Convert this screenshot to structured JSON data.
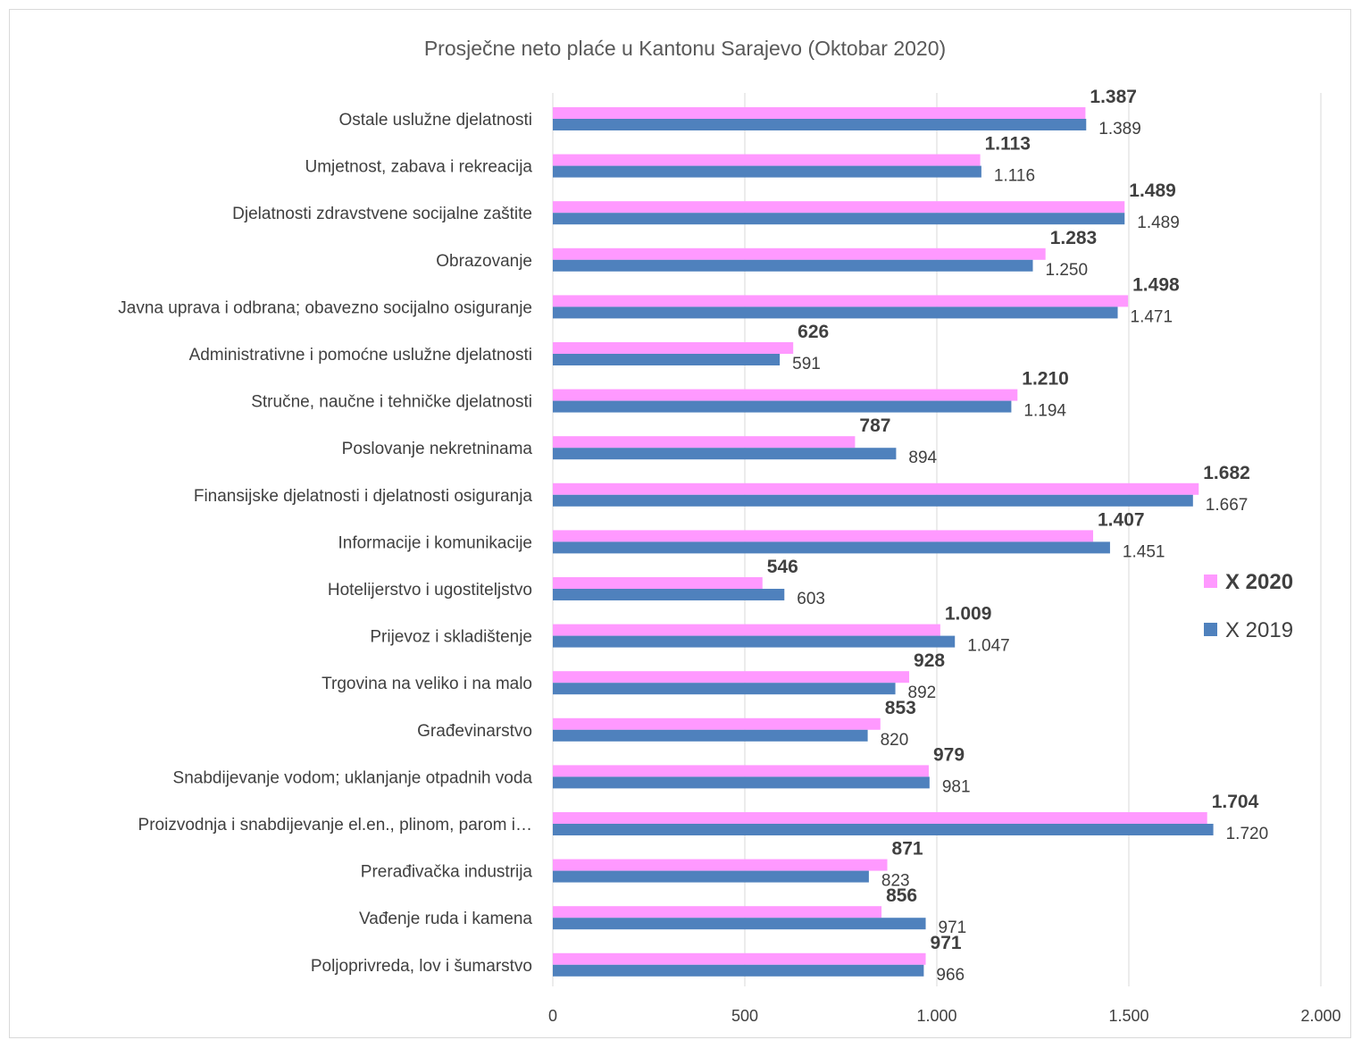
{
  "chart_data": {
    "type": "bar",
    "orientation": "horizontal",
    "title": "Prosječne neto plaće u Kantonu Sarajevo (Oktobar 2020)",
    "categories": [
      "Ostale uslužne djelatnosti",
      "Umjetnost, zabava i rekreacija",
      "Djelatnosti zdravstvene socijalne zaštite",
      "Obrazovanje",
      "Javna uprava i odbrana; obavezno socijalno osiguranje",
      "Administrativne i pomoćne uslužne djelatnosti",
      "Stručne, naučne i tehničke djelatnosti",
      "Poslovanje nekretninama",
      "Finansijske djelatnosti i djelatnosti osiguranja",
      "Informacije i komunikacije",
      "Hotelijerstvo i ugostiteljstvo",
      "Prijevoz i skladištenje",
      "Trgovina na veliko i na malo",
      "Građevinarstvo",
      "Snabdijevanje vodom; uklanjanje otpadnih voda",
      "Proizvodnja i snabdijevanje el.en., plinom, parom i…",
      "Prerađivačka industrija",
      "Vađenje ruda i kamena",
      "Poljoprivreda, lov i šumarstvo"
    ],
    "series": [
      {
        "name": "X 2020",
        "color": "#ff99ff",
        "values": [
          1387,
          1113,
          1489,
          1283,
          1498,
          626,
          1210,
          787,
          1682,
          1407,
          546,
          1009,
          928,
          853,
          979,
          1704,
          871,
          856,
          971
        ],
        "labels": [
          "1.387",
          "1.113",
          "1.489",
          "1.283",
          "1.498",
          "626",
          "1.210",
          "787",
          "1.682",
          "1.407",
          "546",
          "1.009",
          "928",
          "853",
          "979",
          "1.704",
          "871",
          "856",
          "971"
        ]
      },
      {
        "name": "X 2019",
        "color": "#4f81bd",
        "values": [
          1389,
          1116,
          1489,
          1250,
          1471,
          591,
          1194,
          894,
          1667,
          1451,
          603,
          1047,
          892,
          820,
          981,
          1720,
          823,
          971,
          966
        ],
        "labels": [
          "1.389",
          "1.116",
          "1.489",
          "1.250",
          "1.471",
          "591",
          "1.194",
          "894",
          "1.667",
          "1.451",
          "603",
          "1.047",
          "892",
          "820",
          "981",
          "1.720",
          "823",
          "971",
          "966"
        ]
      }
    ],
    "xlim": [
      0,
      2000
    ],
    "ticks": [
      0,
      500,
      1000,
      1500,
      2000
    ],
    "tick_labels": [
      "0",
      "500",
      "1.000",
      "1.500",
      "2.000"
    ],
    "grid": "vertical",
    "legend_position": "right"
  }
}
